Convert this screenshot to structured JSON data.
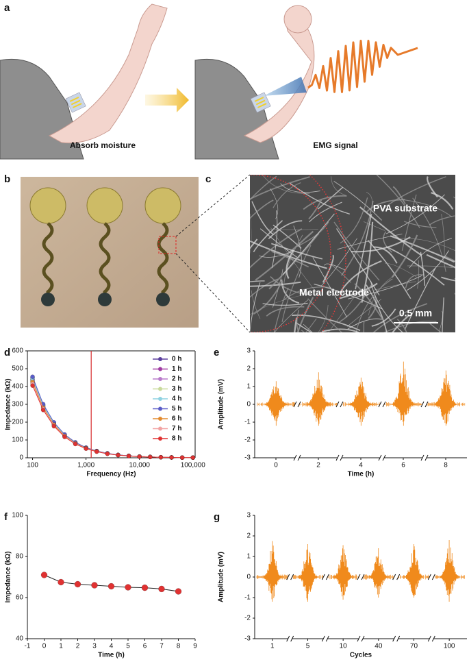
{
  "panel_labels": [
    "a",
    "b",
    "c",
    "d",
    "e",
    "f",
    "g"
  ],
  "panel_a": {
    "captions": [
      "Absorb moisture",
      "EMG signal"
    ]
  },
  "panel_c": {
    "labels": [
      "PVA substrate",
      "Metal electrode"
    ],
    "scale_bar": "0.5 mm"
  },
  "chart_data": [
    {
      "type": "line",
      "xlabel": "Frequency (Hz)",
      "ylabel": "Impedance (kΩ)",
      "xscale": "log",
      "x": [
        100,
        158,
        251,
        398,
        631,
        1000,
        1585,
        2512,
        3981,
        6310,
        10000,
        15849,
        25119,
        39811,
        63096,
        100000
      ],
      "series": [
        {
          "name": "0 h",
          "color": "#5b3f9e",
          "values": [
            450,
            297,
            197,
            130,
            86,
            57,
            38,
            25,
            16,
            11,
            7,
            5,
            3,
            2,
            1,
            1
          ]
        },
        {
          "name": "1 h",
          "color": "#a13ca3",
          "values": [
            440,
            291,
            192,
            127,
            84,
            55,
            37,
            24,
            16,
            11,
            7,
            5,
            3,
            2,
            1,
            1
          ]
        },
        {
          "name": "2 h",
          "color": "#b97ccb",
          "values": [
            435,
            288,
            190,
            126,
            83,
            55,
            37,
            24,
            16,
            10,
            7,
            5,
            3,
            2,
            1,
            1
          ]
        },
        {
          "name": "3 h",
          "color": "#c9da9c",
          "values": [
            430,
            284,
            188,
            124,
            82,
            54,
            36,
            24,
            15,
            10,
            7,
            5,
            3,
            2,
            1,
            1
          ]
        },
        {
          "name": "4 h",
          "color": "#8fd2e2",
          "values": [
            445,
            294,
            194,
            129,
            85,
            56,
            37,
            24,
            16,
            11,
            7,
            5,
            3,
            2,
            1,
            1
          ]
        },
        {
          "name": "5 h",
          "color": "#5a5cc8",
          "values": [
            455,
            301,
            199,
            131,
            87,
            57,
            38,
            25,
            16,
            11,
            7,
            5,
            3,
            2,
            1,
            1
          ]
        },
        {
          "name": "6 h",
          "color": "#e38b30",
          "values": [
            425,
            281,
            186,
            123,
            81,
            54,
            36,
            23,
            15,
            10,
            7,
            5,
            3,
            2,
            1,
            1
          ]
        },
        {
          "name": "7 h",
          "color": "#f2a3a3",
          "values": [
            415,
            274,
            181,
            120,
            79,
            52,
            35,
            23,
            15,
            10,
            7,
            5,
            3,
            2,
            1,
            1
          ]
        },
        {
          "name": "8 h",
          "color": "#e03232",
          "values": [
            405,
            268,
            177,
            117,
            77,
            51,
            34,
            22,
            15,
            10,
            6,
            4,
            3,
            2,
            1,
            1
          ]
        }
      ],
      "xlim": [
        80,
        110000
      ],
      "xticks": [
        100,
        {
          "value": 1000,
          "label": "1,000"
        },
        {
          "value": 10000,
          "label": "10,000"
        },
        {
          "value": 100000,
          "label": "100,000"
        }
      ],
      "ylim": [
        0,
        600
      ],
      "yticks": [
        0,
        100,
        200,
        300,
        400,
        500,
        600
      ],
      "vline": 1250,
      "vline_color": "#d62728",
      "legend": "upper right",
      "box": true
    },
    {
      "type": "emg",
      "xlabel": "Time (h)",
      "ylabel": "Amplitude (mV)",
      "categories": [
        "0",
        "2",
        "4",
        "6",
        "8"
      ],
      "values": [
        1.3,
        1.8,
        1.5,
        2.4,
        1.9
      ],
      "troughs": [
        -1.2,
        -1.2,
        -1.2,
        -1.2,
        -1.2
      ],
      "color": "#f08a1c",
      "ylim": [
        -3,
        3
      ],
      "yticks": [
        -3,
        -2,
        -1,
        0,
        1,
        2,
        3
      ],
      "axis_breaks": true
    },
    {
      "type": "line",
      "xlabel": "Time (h)",
      "ylabel": "Impedance (kΩ)",
      "x": [
        0,
        1,
        2,
        3,
        4,
        5,
        6,
        7,
        8
      ],
      "values": [
        71,
        67.5,
        66.5,
        66,
        65.5,
        65,
        64.8,
        64.2,
        63
      ],
      "color": "#e03232",
      "line_color": "#222222",
      "xlim": [
        -1,
        9
      ],
      "xticks": [
        -1,
        0,
        1,
        2,
        3,
        4,
        5,
        6,
        7,
        8,
        9
      ],
      "ylim": [
        40,
        100
      ],
      "yticks": [
        40,
        60,
        80,
        100
      ]
    },
    {
      "type": "emg",
      "xlabel": "Cycles",
      "ylabel": "Amplitude (mV)",
      "categories": [
        "1",
        "5",
        "10",
        "40",
        "70",
        "100"
      ],
      "values": [
        1.75,
        1.6,
        1.55,
        1.4,
        1.6,
        1.8
      ],
      "troughs": [
        -1.2,
        -1.2,
        -1.1,
        -1.0,
        -1.0,
        -1.2
      ],
      "color": "#f08a1c",
      "ylim": [
        -3,
        3
      ],
      "yticks": [
        -3,
        -2,
        -1,
        0,
        1,
        2,
        3
      ],
      "axis_breaks": true
    }
  ]
}
